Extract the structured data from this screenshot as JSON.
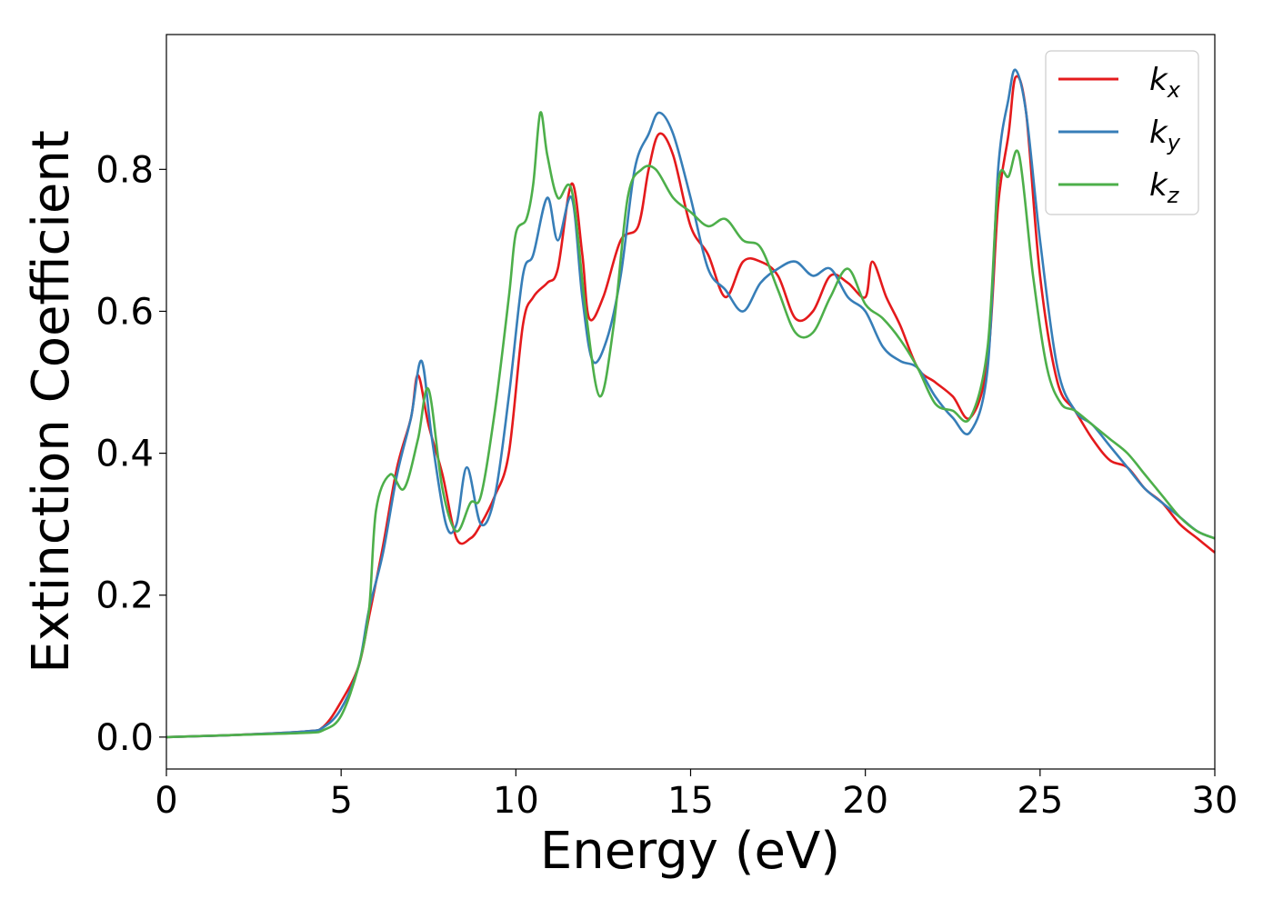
{
  "chart_data": {
    "type": "line",
    "title": "",
    "xlabel": "Energy (eV)",
    "ylabel": "Extinction Coefficient",
    "xlim": [
      0,
      30
    ],
    "ylim": [
      -0.045,
      0.99
    ],
    "xticks": [
      0,
      5,
      10,
      15,
      20,
      25,
      30
    ],
    "xtick_labels": [
      "0",
      "5",
      "10",
      "15",
      "20",
      "25",
      "30"
    ],
    "yticks": [
      0.0,
      0.2,
      0.4,
      0.6,
      0.8
    ],
    "ytick_labels": [
      "0.0",
      "0.2",
      "0.4",
      "0.6",
      "0.8"
    ],
    "grid": false,
    "legend_position": "top-right",
    "series": [
      {
        "name": "k_x",
        "legend_base": "k",
        "legend_sub": "x",
        "color": "#e41a1c",
        "x": [
          0,
          2,
          4,
          4.5,
          5,
          5.5,
          5.8,
          6.2,
          6.6,
          7.0,
          7.2,
          7.5,
          7.9,
          8.3,
          8.7,
          9.0,
          9.4,
          9.8,
          10.2,
          10.5,
          10.9,
          11.2,
          11.6,
          11.9,
          12.1,
          12.5,
          13.0,
          13.5,
          13.8,
          14.1,
          14.5,
          15.0,
          15.5,
          16.0,
          16.5,
          17.0,
          17.5,
          18.0,
          18.5,
          19.0,
          19.5,
          20.0,
          20.2,
          20.6,
          21.0,
          21.5,
          22.0,
          22.5,
          23.0,
          23.5,
          23.8,
          24.1,
          24.3,
          24.6,
          25.0,
          25.5,
          26.0,
          26.5,
          27.0,
          27.5,
          28.0,
          28.5,
          29.0,
          29.5,
          30.0
        ],
        "y": [
          0.0,
          0.003,
          0.008,
          0.015,
          0.05,
          0.1,
          0.17,
          0.27,
          0.38,
          0.45,
          0.51,
          0.44,
          0.37,
          0.28,
          0.28,
          0.3,
          0.34,
          0.4,
          0.58,
          0.62,
          0.64,
          0.66,
          0.78,
          0.68,
          0.59,
          0.62,
          0.7,
          0.72,
          0.8,
          0.85,
          0.82,
          0.72,
          0.68,
          0.62,
          0.67,
          0.67,
          0.65,
          0.59,
          0.6,
          0.65,
          0.64,
          0.62,
          0.67,
          0.62,
          0.58,
          0.52,
          0.5,
          0.48,
          0.45,
          0.53,
          0.75,
          0.85,
          0.93,
          0.88,
          0.65,
          0.5,
          0.46,
          0.42,
          0.39,
          0.38,
          0.35,
          0.33,
          0.3,
          0.28,
          0.26
        ]
      },
      {
        "name": "k_y",
        "legend_base": "k",
        "legend_sub": "y",
        "color": "#377eb8",
        "x": [
          0,
          2,
          4,
          4.5,
          5,
          5.5,
          5.8,
          6.2,
          6.6,
          7.0,
          7.3,
          7.6,
          8.0,
          8.3,
          8.6,
          9.0,
          9.4,
          9.8,
          10.2,
          10.5,
          10.9,
          11.2,
          11.6,
          11.9,
          12.2,
          12.6,
          13.0,
          13.4,
          13.8,
          14.1,
          14.5,
          15.0,
          15.5,
          16.0,
          16.5,
          17.0,
          17.5,
          18.0,
          18.5,
          19.0,
          19.5,
          20.0,
          20.5,
          21.0,
          21.5,
          22.0,
          22.5,
          23.0,
          23.5,
          23.8,
          24.1,
          24.3,
          24.6,
          25.0,
          25.5,
          26.0,
          26.5,
          27.0,
          27.5,
          28.0,
          28.5,
          29.0,
          29.5,
          30.0
        ],
        "y": [
          0.0,
          0.003,
          0.008,
          0.014,
          0.04,
          0.1,
          0.18,
          0.26,
          0.37,
          0.45,
          0.53,
          0.42,
          0.3,
          0.3,
          0.38,
          0.3,
          0.34,
          0.48,
          0.65,
          0.68,
          0.76,
          0.7,
          0.76,
          0.62,
          0.53,
          0.56,
          0.65,
          0.8,
          0.85,
          0.88,
          0.85,
          0.76,
          0.66,
          0.63,
          0.6,
          0.64,
          0.66,
          0.67,
          0.65,
          0.66,
          0.62,
          0.6,
          0.55,
          0.53,
          0.52,
          0.48,
          0.45,
          0.43,
          0.52,
          0.8,
          0.9,
          0.94,
          0.88,
          0.7,
          0.52,
          0.46,
          0.44,
          0.41,
          0.38,
          0.35,
          0.33,
          0.31,
          0.29,
          0.28
        ]
      },
      {
        "name": "k_z",
        "legend_base": "k",
        "legend_sub": "z",
        "color": "#4daf4a",
        "x": [
          0,
          2,
          4,
          4.5,
          5,
          5.5,
          5.8,
          6.0,
          6.4,
          6.8,
          7.2,
          7.5,
          7.9,
          8.3,
          8.7,
          9.0,
          9.4,
          9.8,
          10.0,
          10.3,
          10.5,
          10.7,
          10.9,
          11.2,
          11.6,
          12.0,
          12.4,
          12.8,
          13.2,
          13.6,
          14.0,
          14.5,
          15.0,
          15.5,
          16.0,
          16.5,
          17.0,
          17.5,
          18.0,
          18.5,
          19.0,
          19.5,
          20.0,
          20.5,
          21.0,
          21.5,
          22.0,
          22.5,
          23.0,
          23.5,
          23.8,
          24.1,
          24.4,
          24.8,
          25.2,
          25.6,
          26.0,
          26.5,
          27.0,
          27.5,
          28.0,
          28.5,
          29.0,
          29.5,
          30.0
        ],
        "y": [
          0.0,
          0.003,
          0.006,
          0.01,
          0.03,
          0.1,
          0.18,
          0.32,
          0.37,
          0.35,
          0.42,
          0.49,
          0.35,
          0.29,
          0.33,
          0.34,
          0.46,
          0.62,
          0.71,
          0.73,
          0.78,
          0.88,
          0.82,
          0.76,
          0.77,
          0.6,
          0.48,
          0.58,
          0.76,
          0.8,
          0.8,
          0.76,
          0.74,
          0.72,
          0.73,
          0.7,
          0.69,
          0.63,
          0.57,
          0.57,
          0.62,
          0.66,
          0.61,
          0.59,
          0.56,
          0.52,
          0.47,
          0.46,
          0.45,
          0.55,
          0.78,
          0.79,
          0.82,
          0.65,
          0.52,
          0.47,
          0.46,
          0.44,
          0.42,
          0.4,
          0.37,
          0.34,
          0.31,
          0.29,
          0.28
        ]
      }
    ]
  }
}
